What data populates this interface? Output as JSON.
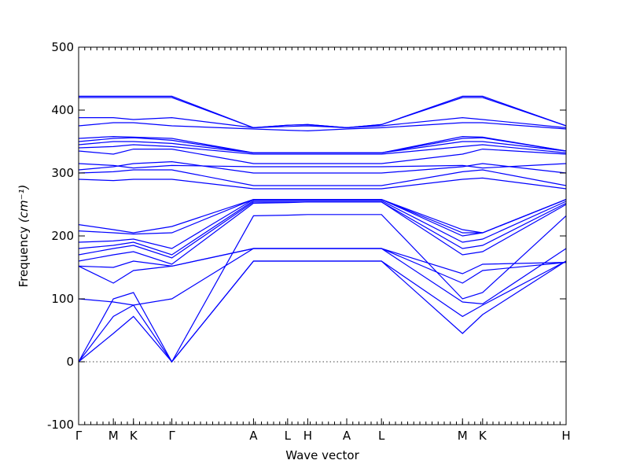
{
  "chart_data": {
    "type": "line",
    "title": "",
    "xlabel": "Wave vector",
    "ylabel_main": "Frequency ",
    "ylabel_unit": "(cm⁻¹)",
    "ylim": [
      -100,
      500
    ],
    "yticks": [
      -100,
      0,
      100,
      200,
      300,
      400,
      500
    ],
    "zero_line": true,
    "line_color": "#0000ff",
    "xlim": [
      0,
      8.0
    ],
    "x_ticks": [
      {
        "x": 0.0,
        "label": "Γ"
      },
      {
        "x": 0.57,
        "label": "M"
      },
      {
        "x": 0.9,
        "label": "K"
      },
      {
        "x": 1.53,
        "label": "Γ"
      },
      {
        "x": 2.87,
        "label": "A"
      },
      {
        "x": 3.43,
        "label": "L"
      },
      {
        "x": 3.76,
        "label": "H"
      },
      {
        "x": 4.4,
        "label": "A"
      },
      {
        "x": 4.97,
        "label": "L"
      },
      {
        "x": 6.3,
        "label": "M"
      },
      {
        "x": 6.63,
        "label": "K"
      },
      {
        "x": 8.0,
        "label": "H"
      }
    ],
    "series": [
      {
        "x": [
          0.0,
          0.57,
          0.9,
          1.53,
          2.87,
          3.43,
          3.76,
          4.4,
          4.97,
          6.3,
          6.63,
          8.0
        ],
        "values": [
          0,
          45,
          72,
          0,
          160,
          160,
          160,
          160,
          160,
          45,
          75,
          160
        ]
      },
      {
        "x": [
          0.0,
          0.57,
          0.9,
          1.53,
          2.87,
          3.43,
          3.76,
          4.4,
          4.97,
          6.3,
          6.63,
          8.0
        ],
        "values": [
          0,
          72,
          90,
          0,
          160,
          160,
          160,
          160,
          160,
          72,
          90,
          160
        ]
      },
      {
        "x": [
          0.0,
          0.57,
          0.9,
          1.53,
          2.87,
          3.43,
          3.76,
          4.4,
          4.97,
          6.3,
          6.63,
          8.0
        ],
        "values": [
          0,
          100,
          110,
          0,
          232,
          233,
          234,
          234,
          234,
          100,
          110,
          232
        ]
      },
      {
        "x": [
          0.0,
          0.57,
          0.9,
          1.53,
          2.87,
          3.43,
          3.76,
          4.4,
          4.97,
          6.3,
          6.63,
          8.0
        ],
        "values": [
          100,
          95,
          90,
          100,
          180,
          180,
          180,
          180,
          180,
          95,
          92,
          180
        ]
      },
      {
        "x": [
          0.0,
          0.57,
          0.9,
          1.53,
          2.87,
          3.43,
          3.76,
          4.4,
          4.97,
          6.3,
          6.63,
          8.0
        ],
        "values": [
          152,
          125,
          145,
          152,
          180,
          180,
          180,
          180,
          180,
          125,
          145,
          158
        ]
      },
      {
        "x": [
          0.0,
          0.57,
          0.9,
          1.53,
          2.87,
          3.43,
          3.76,
          4.4,
          4.97,
          6.3,
          6.63,
          8.0
        ],
        "values": [
          152,
          150,
          160,
          152,
          180,
          180,
          180,
          180,
          180,
          140,
          155,
          158
        ]
      },
      {
        "x": [
          0.0,
          0.57,
          0.9,
          1.53,
          2.87,
          3.43,
          3.76,
          4.4,
          4.97,
          6.3,
          6.63,
          8.0
        ],
        "values": [
          160,
          170,
          175,
          155,
          252,
          253,
          254,
          254,
          254,
          170,
          175,
          250
        ]
      },
      {
        "x": [
          0.0,
          0.57,
          0.9,
          1.53,
          2.87,
          3.43,
          3.76,
          4.4,
          4.97,
          6.3,
          6.63,
          8.0
        ],
        "values": [
          170,
          180,
          185,
          165,
          254,
          254,
          254,
          254,
          254,
          180,
          185,
          252
        ]
      },
      {
        "x": [
          0.0,
          0.57,
          0.9,
          1.53,
          2.87,
          3.43,
          3.76,
          4.4,
          4.97,
          6.3,
          6.63,
          8.0
        ],
        "values": [
          180,
          185,
          190,
          170,
          256,
          256,
          256,
          256,
          256,
          190,
          195,
          255
        ]
      },
      {
        "x": [
          0.0,
          0.57,
          0.9,
          1.53,
          2.87,
          3.43,
          3.76,
          4.4,
          4.97,
          6.3,
          6.63,
          8.0
        ],
        "values": [
          190,
          192,
          195,
          180,
          258,
          258,
          258,
          258,
          258,
          200,
          205,
          258
        ]
      },
      {
        "x": [
          0.0,
          0.57,
          0.9,
          1.53,
          2.87,
          3.43,
          3.76,
          4.4,
          4.97,
          6.3,
          6.63,
          8.0
        ],
        "values": [
          208,
          205,
          203,
          205,
          258,
          258,
          258,
          258,
          258,
          205,
          205,
          258
        ]
      },
      {
        "x": [
          0.0,
          0.57,
          0.9,
          1.53,
          2.87,
          3.43,
          3.76,
          4.4,
          4.97,
          6.3,
          6.63,
          8.0
        ],
        "values": [
          218,
          210,
          205,
          215,
          258,
          258,
          258,
          258,
          258,
          210,
          205,
          258
        ]
      },
      {
        "x": [
          0.0,
          0.57,
          0.9,
          1.53,
          2.87,
          3.43,
          3.76,
          4.4,
          4.97,
          6.3,
          6.63,
          8.0
        ],
        "values": [
          290,
          288,
          290,
          290,
          275,
          275,
          275,
          275,
          275,
          290,
          292,
          275
        ]
      },
      {
        "x": [
          0.0,
          0.57,
          0.9,
          1.53,
          2.87,
          3.43,
          3.76,
          4.4,
          4.97,
          6.3,
          6.63,
          8.0
        ],
        "values": [
          300,
          302,
          305,
          305,
          280,
          280,
          280,
          280,
          280,
          302,
          305,
          280
        ]
      },
      {
        "x": [
          0.0,
          0.57,
          0.9,
          1.53,
          2.87,
          3.43,
          3.76,
          4.4,
          4.97,
          6.3,
          6.63,
          8.0
        ],
        "values": [
          305,
          310,
          315,
          318,
          300,
          300,
          300,
          300,
          300,
          310,
          315,
          300
        ]
      },
      {
        "x": [
          0.0,
          0.57,
          0.9,
          1.53,
          2.87,
          3.43,
          3.76,
          4.4,
          4.97,
          6.3,
          6.63,
          8.0
        ],
        "values": [
          315,
          312,
          308,
          312,
          310,
          310,
          310,
          310,
          310,
          312,
          308,
          315
        ]
      },
      {
        "x": [
          0.0,
          0.57,
          0.9,
          1.53,
          2.87,
          3.43,
          3.76,
          4.4,
          4.97,
          6.3,
          6.63,
          8.0
        ],
        "values": [
          335,
          330,
          338,
          338,
          315,
          315,
          315,
          315,
          315,
          330,
          338,
          330
        ]
      },
      {
        "x": [
          0.0,
          0.57,
          0.9,
          1.53,
          2.87,
          3.43,
          3.76,
          4.4,
          4.97,
          6.3,
          6.63,
          8.0
        ],
        "values": [
          340,
          342,
          345,
          342,
          330,
          330,
          330,
          330,
          330,
          342,
          345,
          332
        ]
      },
      {
        "x": [
          0.0,
          0.57,
          0.9,
          1.53,
          2.87,
          3.43,
          3.76,
          4.4,
          4.97,
          6.3,
          6.63,
          8.0
        ],
        "values": [
          345,
          350,
          350,
          347,
          332,
          332,
          332,
          332,
          332,
          350,
          350,
          335
        ]
      },
      {
        "x": [
          0.0,
          0.57,
          0.9,
          1.53,
          2.87,
          3.43,
          3.76,
          4.4,
          4.97,
          6.3,
          6.63,
          8.0
        ],
        "values": [
          350,
          355,
          356,
          352,
          332,
          332,
          332,
          332,
          332,
          355,
          356,
          335
        ]
      },
      {
        "x": [
          0.0,
          0.57,
          0.9,
          1.53,
          2.87,
          3.43,
          3.76,
          4.4,
          4.97,
          6.3,
          6.63,
          8.0
        ],
        "values": [
          355,
          358,
          357,
          355,
          332,
          332,
          332,
          332,
          332,
          358,
          357,
          335
        ]
      },
      {
        "x": [
          0.0,
          0.57,
          0.9,
          1.53,
          2.87,
          3.43,
          3.76,
          4.4,
          4.97,
          6.3,
          6.63,
          8.0
        ],
        "values": [
          375,
          380,
          380,
          375,
          370,
          368,
          367,
          370,
          372,
          380,
          380,
          370
        ]
      },
      {
        "x": [
          0.0,
          0.57,
          0.9,
          1.53,
          2.87,
          3.43,
          3.76,
          4.4,
          4.97,
          6.3,
          6.63,
          8.0
        ],
        "values": [
          388,
          388,
          385,
          388,
          372,
          374,
          375,
          372,
          375,
          388,
          385,
          372
        ]
      },
      {
        "x": [
          0.0,
          0.57,
          0.9,
          1.53,
          2.87,
          3.43,
          3.76,
          4.4,
          4.97,
          6.3,
          6.63,
          8.0
        ],
        "values": [
          420,
          420,
          420,
          420,
          372,
          376,
          377,
          372,
          377,
          420,
          420,
          375
        ]
      },
      {
        "x": [
          0.0,
          0.57,
          0.9,
          1.53,
          2.87,
          3.43,
          3.76,
          4.4,
          4.97,
          6.3,
          6.63,
          8.0
        ],
        "values": [
          422,
          422,
          422,
          422,
          372,
          376,
          377,
          372,
          377,
          422,
          422,
          375
        ]
      }
    ]
  }
}
